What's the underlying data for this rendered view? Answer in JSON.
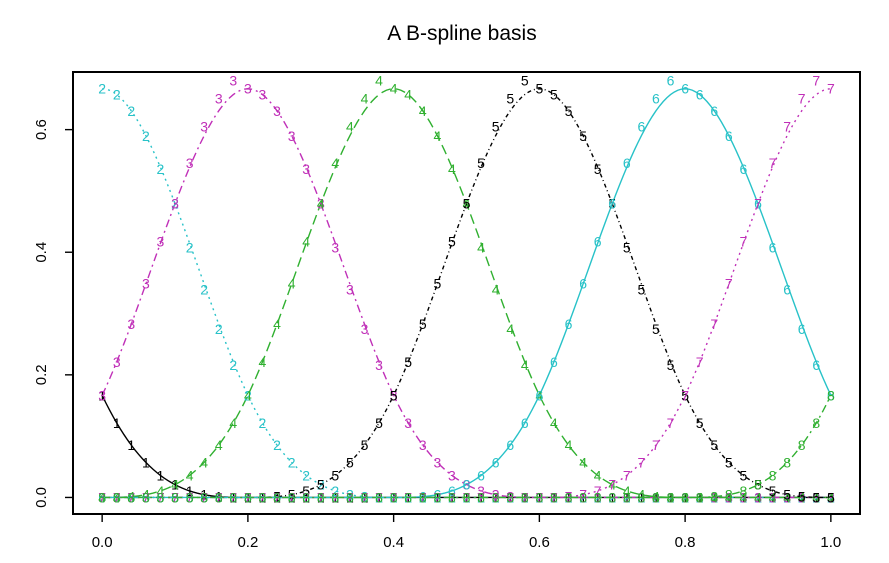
{
  "chart_data": {
    "type": "line",
    "title": "A B-spline basis",
    "xlabel": "",
    "ylabel": "",
    "xlim": [
      -0.04,
      1.04
    ],
    "ylim": [
      -0.027,
      0.694
    ],
    "xticks": [
      0.0,
      0.2,
      0.4,
      0.6,
      0.8,
      1.0
    ],
    "xtick_labels": [
      "0.0",
      "0.2",
      "0.4",
      "0.6",
      "0.8",
      "1.0"
    ],
    "yticks": [
      0.0,
      0.2,
      0.4,
      0.6
    ],
    "ytick_labels": [
      "0.0",
      "0.2",
      "0.4",
      "0.6"
    ],
    "grid": false,
    "knots": [
      0,
      0.2,
      0.4,
      0.6,
      0.8,
      1.0
    ],
    "x": [
      0,
      0.02,
      0.04,
      0.06,
      0.08,
      0.1,
      0.12,
      0.14,
      0.16,
      0.18,
      0.2,
      0.22,
      0.24,
      0.26,
      0.28,
      0.3,
      0.32,
      0.34,
      0.36,
      0.38,
      0.4,
      0.42,
      0.44,
      0.46,
      0.48,
      0.5,
      0.52,
      0.54,
      0.56,
      0.58,
      0.6,
      0.62,
      0.64,
      0.66,
      0.68,
      0.7,
      0.72,
      0.74,
      0.76,
      0.78,
      0.8,
      0.82,
      0.84,
      0.86,
      0.88,
      0.9,
      0.92,
      0.94,
      0.96,
      0.98,
      1.0
    ],
    "series": [
      {
        "name": "1",
        "color": "#000000",
        "dash": "",
        "values": [
          0.1667,
          0.1215,
          0.0853,
          0.0572,
          0.036,
          0.0208,
          0.0107,
          0.0045,
          0.0013,
          0.0002,
          0,
          0,
          0,
          0,
          0,
          0,
          0,
          0,
          0,
          0,
          0,
          0,
          0,
          0,
          0,
          0,
          0,
          0,
          0,
          0,
          0,
          0,
          0,
          0,
          0,
          0,
          0,
          0,
          0,
          0,
          0,
          0,
          0,
          0,
          0,
          0,
          0,
          0,
          0,
          0,
          0
        ]
      },
      {
        "name": "2",
        "color": "#28c2c8",
        "dash": "2,4",
        "values": [
          0.6667,
          0.6573,
          0.6307,
          0.5895,
          0.536,
          0.4792,
          0.408,
          0.3395,
          0.2747,
          0.2157,
          0.1667,
          0.1215,
          0.0853,
          0.0572,
          0.036,
          0.0208,
          0.0107,
          0.0045,
          0.0013,
          0.0002,
          0,
          0,
          0,
          0,
          0,
          0,
          0,
          0,
          0,
          0,
          0,
          0,
          0,
          0,
          0,
          0,
          0,
          0,
          0,
          0,
          0,
          0,
          0,
          0,
          0,
          0,
          0,
          0,
          0,
          0,
          0
        ]
      },
      {
        "name": "3",
        "color": "#c030b8",
        "dash": "8,4,2,4",
        "values": [
          0.1667,
          0.2212,
          0.2827,
          0.3488,
          0.4173,
          0.4792,
          0.5453,
          0.6047,
          0.6507,
          0.6803,
          0.6667,
          0.6573,
          0.6307,
          0.5895,
          0.536,
          0.4792,
          0.408,
          0.3395,
          0.2747,
          0.2157,
          0.1667,
          0.1215,
          0.0853,
          0.0572,
          0.036,
          0.0208,
          0.0107,
          0.0045,
          0.0013,
          0.0002,
          0,
          0,
          0,
          0,
          0,
          0,
          0,
          0,
          0,
          0,
          0,
          0,
          0,
          0,
          0,
          0,
          0,
          0,
          0,
          0,
          0
        ]
      },
      {
        "name": "4",
        "color": "#30b030",
        "dash": "10,5",
        "values": [
          0,
          0.0002,
          0.0013,
          0.0045,
          0.0107,
          0.0208,
          0.036,
          0.0572,
          0.0853,
          0.1215,
          0.1667,
          0.2212,
          0.2827,
          0.3488,
          0.4173,
          0.4792,
          0.5453,
          0.6047,
          0.6507,
          0.6803,
          0.6667,
          0.6573,
          0.6307,
          0.5895,
          0.536,
          0.4792,
          0.408,
          0.3395,
          0.2747,
          0.2157,
          0.1667,
          0.1215,
          0.0853,
          0.0572,
          0.036,
          0.0208,
          0.0107,
          0.0045,
          0.0013,
          0.0002,
          0,
          0,
          0,
          0,
          0,
          0,
          0,
          0,
          0,
          0,
          0
        ]
      },
      {
        "name": "5",
        "color": "#000000",
        "dash": "4,3,1,3",
        "values": [
          0,
          0,
          0,
          0,
          0,
          0,
          0,
          0,
          0,
          0,
          0,
          0.0002,
          0.0013,
          0.0045,
          0.0107,
          0.0208,
          0.036,
          0.0572,
          0.0853,
          0.1215,
          0.1667,
          0.2212,
          0.2827,
          0.3488,
          0.4173,
          0.4792,
          0.5453,
          0.6047,
          0.6507,
          0.6803,
          0.6667,
          0.6573,
          0.6307,
          0.5895,
          0.536,
          0.4792,
          0.408,
          0.3395,
          0.2747,
          0.2157,
          0.1667,
          0.1215,
          0.0853,
          0.0572,
          0.036,
          0.0208,
          0.0107,
          0.0045,
          0.0013,
          0.0002,
          0
        ]
      },
      {
        "name": "6",
        "color": "#28c2c8",
        "dash": "",
        "values": [
          0,
          0,
          0,
          0,
          0,
          0,
          0,
          0,
          0,
          0,
          0,
          0,
          0,
          0,
          0,
          0,
          0,
          0,
          0,
          0,
          0,
          0.0002,
          0.0013,
          0.0045,
          0.0107,
          0.0208,
          0.036,
          0.0572,
          0.0853,
          0.1215,
          0.1667,
          0.2212,
          0.2827,
          0.3488,
          0.4173,
          0.4792,
          0.5453,
          0.6047,
          0.6507,
          0.6803,
          0.6667,
          0.6573,
          0.6307,
          0.5895,
          0.536,
          0.4792,
          0.408,
          0.3395,
          0.2747,
          0.2157,
          0.1667
        ]
      },
      {
        "name": "7",
        "color": "#c030b8",
        "dash": "2,4",
        "values": [
          0,
          0,
          0,
          0,
          0,
          0,
          0,
          0,
          0,
          0,
          0,
          0,
          0,
          0,
          0,
          0,
          0,
          0,
          0,
          0,
          0,
          0,
          0,
          0,
          0,
          0,
          0,
          0,
          0,
          0,
          0,
          0.0002,
          0.0013,
          0.0045,
          0.0107,
          0.0208,
          0.036,
          0.0572,
          0.0853,
          0.1215,
          0.1667,
          0.2212,
          0.2827,
          0.3488,
          0.4173,
          0.4792,
          0.5453,
          0.6047,
          0.6507,
          0.6803,
          0.6667
        ]
      },
      {
        "name": "8",
        "color": "#30b030",
        "dash": "8,4,2,4",
        "values": [
          0,
          0,
          0,
          0,
          0,
          0,
          0,
          0,
          0,
          0,
          0,
          0,
          0,
          0,
          0,
          0,
          0,
          0,
          0,
          0,
          0,
          0,
          0,
          0,
          0,
          0,
          0,
          0,
          0,
          0,
          0,
          0,
          0,
          0,
          0,
          0,
          0,
          0,
          0,
          0,
          0,
          0.0002,
          0.0013,
          0.0045,
          0.0107,
          0.0208,
          0.036,
          0.0572,
          0.0853,
          0.1215,
          0.1667
        ]
      }
    ]
  }
}
